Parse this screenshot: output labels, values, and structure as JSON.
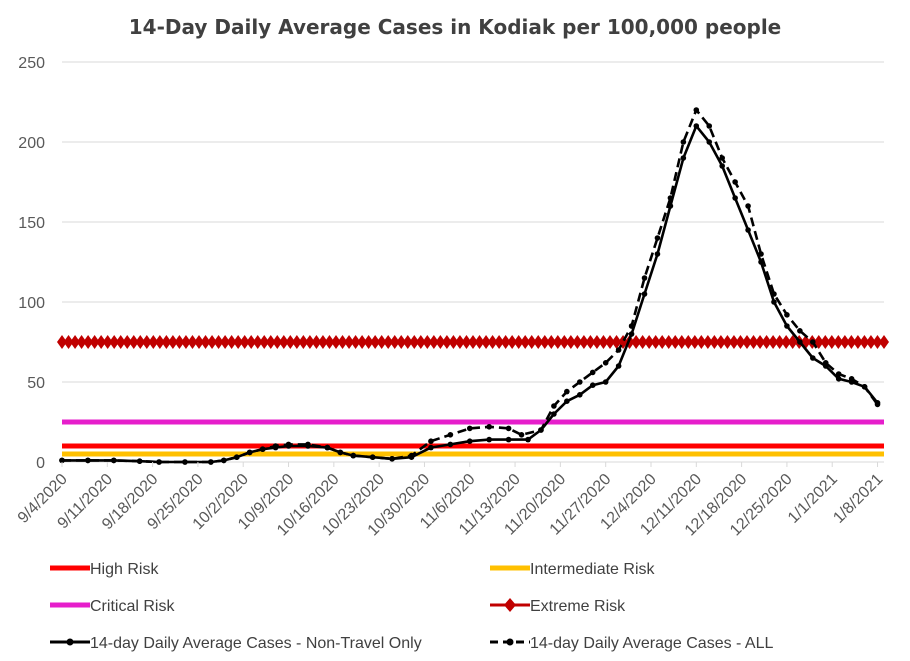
{
  "chart_data": {
    "type": "line",
    "title": "14-Day Daily Average Cases in Kodiak per 100,000 people",
    "xlabel": "",
    "ylabel": "",
    "ylim": [
      0,
      250
    ],
    "yticks": [
      0,
      50,
      100,
      150,
      200,
      250
    ],
    "x_range": [
      "9/4/2020",
      "1/9/2021"
    ],
    "xtick_labels": [
      "9/4/2020",
      "9/11/2020",
      "9/18/2020",
      "9/25/2020",
      "10/2/2020",
      "10/9/2020",
      "10/16/2020",
      "10/23/2020",
      "10/30/2020",
      "11/6/2020",
      "11/13/2020",
      "11/20/2020",
      "11/27/2020",
      "12/4/2020",
      "12/11/2020",
      "12/18/2020",
      "12/25/2020",
      "1/1/2021",
      "1/8/2021"
    ],
    "grid": true,
    "legend_position": "bottom",
    "thresholds": [
      {
        "name": "High Risk",
        "value": 10,
        "color": "#ff0000",
        "style": "line"
      },
      {
        "name": "Intermediate Risk",
        "value": 5,
        "color": "#ffc000",
        "style": "line"
      },
      {
        "name": "Critical Risk",
        "value": 25,
        "color": "#e61ecb",
        "style": "line"
      },
      {
        "name": "Extreme Risk",
        "value": 75,
        "color": "#c00000",
        "style": "diamond"
      }
    ],
    "series": [
      {
        "name": "14-day Daily Average Cases - Non-Travel Only",
        "color": "#000000",
        "dash": "solid",
        "points": [
          [
            "9/4/2020",
            1
          ],
          [
            "9/8/2020",
            1
          ],
          [
            "9/12/2020",
            1
          ],
          [
            "9/16/2020",
            0.5
          ],
          [
            "9/19/2020",
            0
          ],
          [
            "9/23/2020",
            0
          ],
          [
            "9/27/2020",
            0
          ],
          [
            "9/29/2020",
            1
          ],
          [
            "10/1/2020",
            3
          ],
          [
            "10/3/2020",
            6
          ],
          [
            "10/5/2020",
            8
          ],
          [
            "10/7/2020",
            9
          ],
          [
            "10/9/2020",
            10
          ],
          [
            "10/12/2020",
            10
          ],
          [
            "10/15/2020",
            9
          ],
          [
            "10/17/2020",
            6
          ],
          [
            "10/19/2020",
            4
          ],
          [
            "10/22/2020",
            3
          ],
          [
            "10/25/2020",
            2
          ],
          [
            "10/28/2020",
            3
          ],
          [
            "10/31/2020",
            9
          ],
          [
            "11/3/2020",
            11
          ],
          [
            "11/6/2020",
            13
          ],
          [
            "11/9/2020",
            14
          ],
          [
            "11/12/2020",
            14
          ],
          [
            "11/15/2020",
            14
          ],
          [
            "11/17/2020",
            20
          ],
          [
            "11/19/2020",
            30
          ],
          [
            "11/21/2020",
            38
          ],
          [
            "11/23/2020",
            42
          ],
          [
            "11/25/2020",
            48
          ],
          [
            "11/27/2020",
            50
          ],
          [
            "11/29/2020",
            60
          ],
          [
            "12/1/2020",
            80
          ],
          [
            "12/3/2020",
            105
          ],
          [
            "12/5/2020",
            130
          ],
          [
            "12/7/2020",
            160
          ],
          [
            "12/9/2020",
            190
          ],
          [
            "12/11/2020",
            210
          ],
          [
            "12/13/2020",
            200
          ],
          [
            "12/15/2020",
            185
          ],
          [
            "12/17/2020",
            165
          ],
          [
            "12/19/2020",
            145
          ],
          [
            "12/21/2020",
            125
          ],
          [
            "12/23/2020",
            100
          ],
          [
            "12/25/2020",
            85
          ],
          [
            "12/27/2020",
            75
          ],
          [
            "12/29/2020",
            65
          ],
          [
            "12/31/2020",
            60
          ],
          [
            "1/2/2021",
            52
          ],
          [
            "1/4/2021",
            50
          ],
          [
            "1/6/2021",
            47
          ],
          [
            "1/8/2021",
            37
          ]
        ]
      },
      {
        "name": "14-day Daily Average Cases - ALL",
        "color": "#000000",
        "dash": "dashed",
        "points": [
          [
            "9/4/2020",
            1
          ],
          [
            "9/8/2020",
            1
          ],
          [
            "9/12/2020",
            1
          ],
          [
            "9/16/2020",
            0.5
          ],
          [
            "9/19/2020",
            0
          ],
          [
            "9/23/2020",
            0
          ],
          [
            "9/27/2020",
            0
          ],
          [
            "9/29/2020",
            1
          ],
          [
            "10/1/2020",
            3
          ],
          [
            "10/3/2020",
            6
          ],
          [
            "10/5/2020",
            8
          ],
          [
            "10/7/2020",
            10
          ],
          [
            "10/9/2020",
            11
          ],
          [
            "10/12/2020",
            11
          ],
          [
            "10/15/2020",
            9
          ],
          [
            "10/17/2020",
            6
          ],
          [
            "10/19/2020",
            4
          ],
          [
            "10/22/2020",
            3
          ],
          [
            "10/25/2020",
            2
          ],
          [
            "10/28/2020",
            4
          ],
          [
            "10/31/2020",
            13
          ],
          [
            "11/3/2020",
            17
          ],
          [
            "11/6/2020",
            21
          ],
          [
            "11/9/2020",
            22
          ],
          [
            "11/12/2020",
            21
          ],
          [
            "11/14/2020",
            17
          ],
          [
            "11/17/2020",
            20
          ],
          [
            "11/19/2020",
            35
          ],
          [
            "11/21/2020",
            44
          ],
          [
            "11/23/2020",
            50
          ],
          [
            "11/25/2020",
            56
          ],
          [
            "11/27/2020",
            62
          ],
          [
            "11/29/2020",
            70
          ],
          [
            "12/1/2020",
            85
          ],
          [
            "12/3/2020",
            115
          ],
          [
            "12/5/2020",
            140
          ],
          [
            "12/7/2020",
            165
          ],
          [
            "12/9/2020",
            200
          ],
          [
            "12/11/2020",
            220
          ],
          [
            "12/13/2020",
            210
          ],
          [
            "12/15/2020",
            190
          ],
          [
            "12/17/2020",
            175
          ],
          [
            "12/19/2020",
            160
          ],
          [
            "12/21/2020",
            130
          ],
          [
            "12/23/2020",
            105
          ],
          [
            "12/25/2020",
            92
          ],
          [
            "12/27/2020",
            82
          ],
          [
            "12/29/2020",
            75
          ],
          [
            "12/31/2020",
            62
          ],
          [
            "1/2/2021",
            55
          ],
          [
            "1/4/2021",
            52
          ],
          [
            "1/6/2021",
            47
          ],
          [
            "1/8/2021",
            36
          ]
        ]
      }
    ],
    "legend": [
      {
        "label": "High Risk",
        "color": "#ff0000",
        "marker": "line"
      },
      {
        "label": "Intermediate Risk",
        "color": "#ffc000",
        "marker": "line"
      },
      {
        "label": "Critical Risk",
        "color": "#e61ecb",
        "marker": "line"
      },
      {
        "label": "Extreme Risk",
        "color": "#c00000",
        "marker": "diamond"
      },
      {
        "label": "14-day Daily Average Cases - Non-Travel Only",
        "color": "#000000",
        "marker": "solid-dot"
      },
      {
        "label": "14-day Daily Average Cases - ALL",
        "color": "#000000",
        "marker": "dashed-dot"
      }
    ]
  }
}
